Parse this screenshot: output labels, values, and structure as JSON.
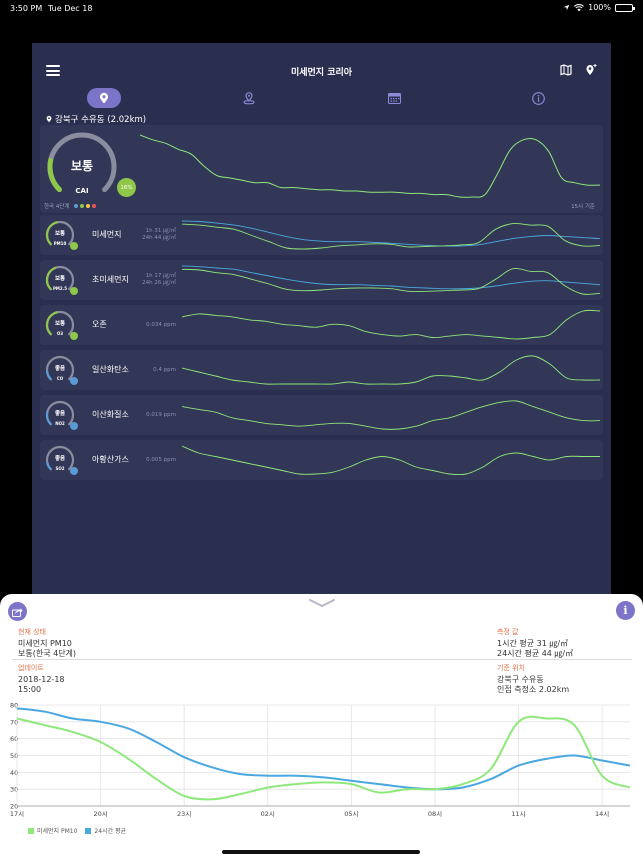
{
  "status_bar": {
    "time": "3:50 PM",
    "date": "Tue Dec 18",
    "battery": "100%",
    "battery_level": 1.0
  },
  "header": {
    "title": "미세먼지 코리아",
    "menu_icon": "menu-icon",
    "right_icons": [
      "map-icon",
      "location-add-icon"
    ]
  },
  "tabs": [
    {
      "icon": "location-pin-icon",
      "active": true
    },
    {
      "icon": "location-nearby-icon",
      "active": false
    },
    {
      "icon": "calendar-icon",
      "active": false
    },
    {
      "icon": "info-icon",
      "active": false
    }
  ],
  "location": {
    "label": "강북구 수유동 (2.02km)"
  },
  "cai": {
    "status": "보통",
    "label": "CAI",
    "percent_label": "16%",
    "scale_label": "한국 4단계",
    "scale_colors": [
      "#5b9bd5",
      "#8ec74a",
      "#f2c94c",
      "#eb5757"
    ],
    "basis": "15시 기준",
    "series": [
      62,
      58,
      55,
      50,
      46,
      36,
      28,
      26,
      24,
      22,
      22,
      18,
      18,
      17,
      16,
      16,
      15,
      15,
      14,
      14,
      14,
      13,
      13,
      12,
      12,
      10,
      10,
      12,
      30,
      50,
      58,
      58,
      48,
      26,
      22,
      20,
      20
    ]
  },
  "pollutants": [
    {
      "status": "보통",
      "code": "PM10",
      "name": "미세먼지",
      "value_line1": "1h 31 ㎍/㎥",
      "value_line2": "24h 44 ㎍/㎥",
      "badge_color": "#8ec74a",
      "gauge_color": "#8ec74a",
      "gauge_fraction": 0.45,
      "series": [
        72,
        70,
        66,
        62,
        50,
        38,
        26,
        24,
        26,
        30,
        32,
        34,
        33,
        28,
        29,
        30,
        32,
        36,
        62,
        73,
        70,
        68,
        40,
        30,
        31
      ],
      "series2": [
        78,
        77,
        74,
        70,
        64,
        56,
        48,
        42,
        39,
        38,
        38,
        37,
        35,
        33,
        31,
        30,
        30,
        32,
        38,
        44,
        48,
        50,
        48,
        46,
        44
      ]
    },
    {
      "status": "보통",
      "code": "PM2.5",
      "name": "초미세먼지",
      "value_line1": "1h 17 ㎍/㎥",
      "value_line2": "24h 26 ㎍/㎥",
      "badge_color": "#8ec74a",
      "gauge_color": "#8ec74a",
      "gauge_fraction": 0.42,
      "series": [
        55,
        54,
        50,
        47,
        40,
        33,
        25,
        23,
        24,
        26,
        27,
        27,
        26,
        22,
        22,
        23,
        24,
        26,
        40,
        56,
        52,
        50,
        30,
        18,
        19
      ],
      "series2": [
        60,
        59,
        57,
        55,
        50,
        45,
        40,
        36,
        33,
        32,
        32,
        31,
        30,
        28,
        27,
        26,
        26,
        27,
        30,
        34,
        37,
        38,
        36,
        34,
        32
      ]
    },
    {
      "status": "보통",
      "code": "O3",
      "name": "오존",
      "value_line1": "0.034 ppm",
      "value_line2": "",
      "badge_color": "#8ec74a",
      "gauge_color": "#8ec74a",
      "gauge_fraction": 0.45,
      "series": [
        30,
        32,
        31,
        30,
        28,
        27,
        25,
        24,
        23,
        25,
        24,
        20,
        18,
        17,
        18,
        16,
        17,
        18,
        17,
        16,
        15,
        16,
        18,
        28,
        34,
        34
      ]
    },
    {
      "status": "좋음",
      "code": "CO",
      "name": "일산화탄소",
      "value_line1": "0.4 ppm",
      "value_line2": "",
      "badge_color": "#5b9bd5",
      "gauge_color": "#5b9bd5",
      "gauge_fraction": 0.15,
      "series": [
        22,
        20,
        18,
        16,
        15,
        14,
        14,
        14,
        14,
        14,
        15,
        14,
        14,
        14,
        15,
        18,
        18,
        17,
        16,
        20,
        26,
        28,
        24,
        17,
        16,
        16
      ]
    },
    {
      "status": "좋음",
      "code": "NO2",
      "name": "이산화질소",
      "value_line1": "0.019 ppm",
      "value_line2": "",
      "badge_color": "#5b9bd5",
      "gauge_color": "#5b9bd5",
      "gauge_fraction": 0.22,
      "series": [
        30,
        28,
        26,
        22,
        20,
        18,
        17,
        16,
        17,
        18,
        18,
        16,
        14,
        14,
        16,
        20,
        22,
        26,
        30,
        33,
        34,
        30,
        26,
        22,
        20,
        20
      ]
    },
    {
      "status": "좋음",
      "code": "SO2",
      "name": "아황산가스",
      "value_line1": "0.005 ppm",
      "value_line2": "",
      "badge_color": "#5b9bd5",
      "gauge_color": "#5b9bd5",
      "gauge_fraction": 0.12,
      "series": [
        30,
        26,
        24,
        22,
        20,
        18,
        16,
        14,
        14,
        15,
        18,
        22,
        24,
        22,
        18,
        16,
        14,
        14,
        18,
        24,
        26,
        24,
        22,
        24,
        24,
        24
      ]
    }
  ],
  "sheet": {
    "current_state_label": "현재 상태",
    "current_pollutant": "미세먼지 PM10",
    "current_grade": "보통(한국 4단계)",
    "measure_label": "측정 값",
    "measure_1h": "1시간 평균 31 ㎍/㎥",
    "measure_24h": "24시간 평균 44 ㎍/㎥",
    "update_label": "업데이트",
    "update_date": "2018-12-18",
    "update_time": "15:00",
    "station_label": "기준 위치",
    "station_name": "강북구 수유동",
    "station_distance": "인접 측정소 2.02km"
  },
  "chart_data": {
    "type": "line",
    "x": [
      "17시",
      "18시",
      "19시",
      "20시",
      "21시",
      "22시",
      "23시",
      "00시",
      "01시",
      "02시",
      "03시",
      "04시",
      "05시",
      "06시",
      "07시",
      "08시",
      "09시",
      "10시",
      "11시",
      "12시",
      "13시",
      "14시",
      "15시"
    ],
    "x_tick_labels": [
      "17시",
      "20시",
      "23시",
      "02시",
      "05시",
      "08시",
      "11시",
      "14시"
    ],
    "series": [
      {
        "name": "미세먼지 PM10",
        "color": "#8ee87a",
        "values": [
          72,
          68,
          64,
          58,
          48,
          36,
          26,
          24,
          27,
          31,
          33,
          34,
          33,
          28,
          30,
          30,
          33,
          42,
          70,
          72,
          68,
          38,
          31
        ]
      },
      {
        "name": "24시간 평균",
        "color": "#4aa8e0",
        "values": [
          78,
          76,
          72,
          70,
          66,
          58,
          49,
          43,
          39,
          38,
          38,
          37,
          35,
          33,
          31,
          30,
          31,
          36,
          44,
          48,
          50,
          47,
          44
        ]
      }
    ],
    "ylim": [
      20,
      80
    ],
    "yticks": [
      20,
      30,
      40,
      50,
      60,
      70,
      80
    ],
    "grid": true,
    "legend": "bottom-left"
  }
}
